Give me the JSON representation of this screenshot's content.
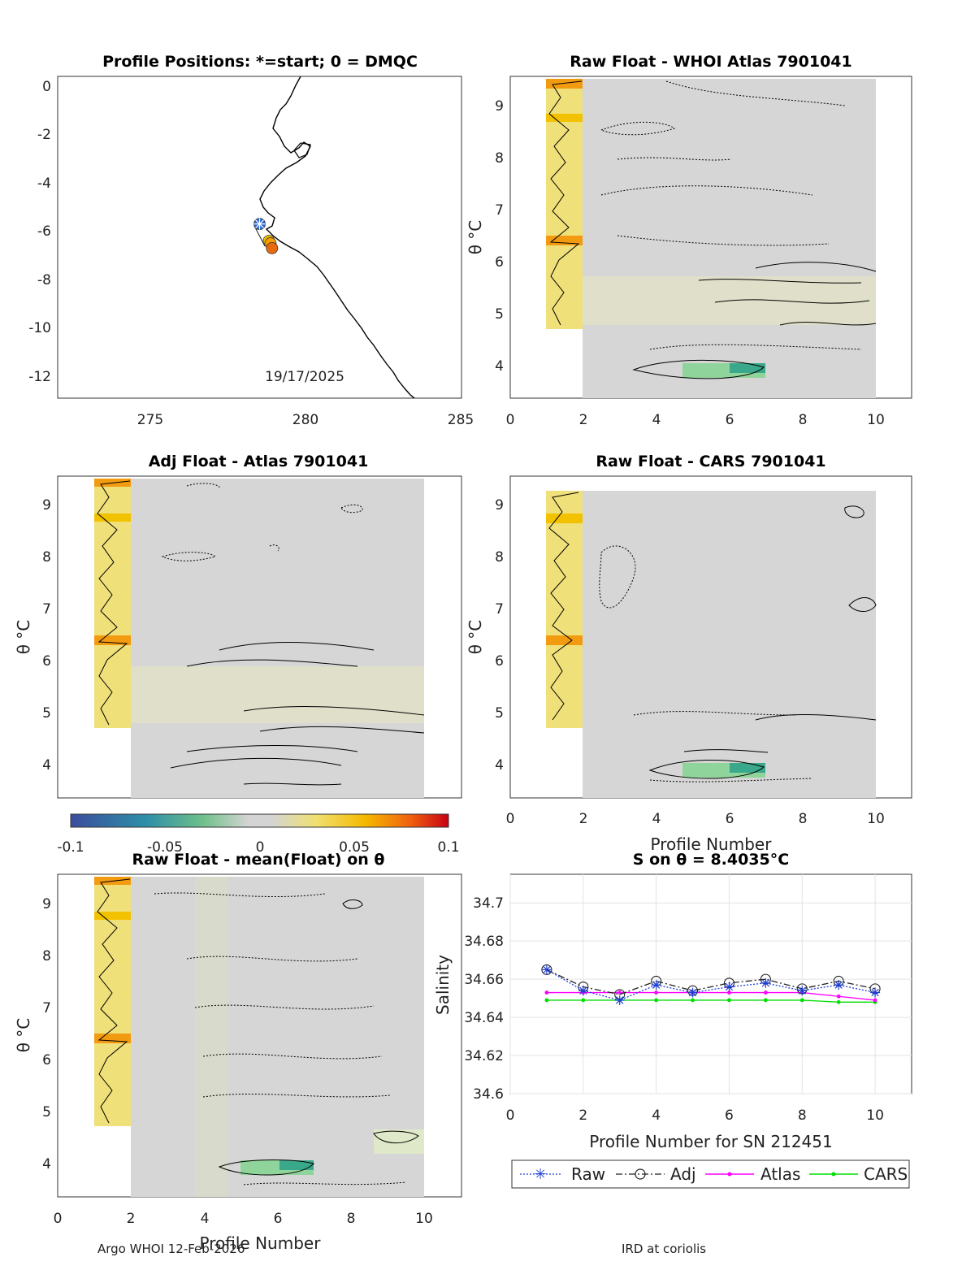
{
  "panels": {
    "map": {
      "title": "Profile Positions: *=start; 0 = DMQC",
      "date_label": "19/17/2025",
      "xticks": [
        "275",
        "280",
        "285"
      ],
      "yticks": [
        "0",
        "-2",
        "-4",
        "-6",
        "-8",
        "-10",
        "-12"
      ]
    },
    "whoi": {
      "title": "Raw Float - WHOI Atlas  7901041",
      "ylabel": "θ °C",
      "xticks": [
        "0",
        "2",
        "4",
        "6",
        "8",
        "10"
      ],
      "yticks": [
        "4",
        "5",
        "6",
        "7",
        "8",
        "9"
      ]
    },
    "adj_atlas": {
      "title": "Adj Float - Atlas  7901041",
      "ylabel": "θ °C",
      "yticks": [
        "4",
        "5",
        "6",
        "7",
        "8",
        "9"
      ]
    },
    "cars": {
      "title": "Raw Float - CARS  7901041",
      "ylabel": "θ °C",
      "xlabel": "Profile Number",
      "xticks": [
        "0",
        "2",
        "4",
        "6",
        "8",
        "10"
      ],
      "yticks": [
        "4",
        "5",
        "6",
        "7",
        "8",
        "9"
      ]
    },
    "mean": {
      "title": "Raw Float - mean(Float) on θ",
      "ylabel": "θ °C",
      "xlabel": "Profile Number",
      "xticks": [
        "0",
        "2",
        "4",
        "6",
        "8",
        "10"
      ],
      "yticks": [
        "4",
        "5",
        "6",
        "7",
        "8",
        "9"
      ]
    },
    "salinity": {
      "title": "S on θ = 8.4035°C",
      "ylabel": "Salinity",
      "xlabel": "Profile Number for SN 212451"
    }
  },
  "colorbar": {
    "ticks": [
      "-0.1",
      "-0.05",
      "0",
      "0.05",
      "0.1"
    ]
  },
  "legend": [
    "Raw",
    "Adj",
    "Atlas",
    "CARS"
  ],
  "footer": {
    "left": "Argo WHOI 12-Feb-2026",
    "right": "IRD at coriolis"
  },
  "colors": {
    "raw": "#1f3fd6",
    "adj": "#222222",
    "atlas": "#ff00ff",
    "cars": "#00dd00",
    "background_field": "#d6d6d6"
  },
  "chart_data": [
    {
      "type": "scatter",
      "title": "Profile Positions: *=start; 0 = DMQC",
      "xlim": [
        272,
        285
      ],
      "ylim": [
        -13,
        0.3
      ],
      "points": [
        {
          "lon": 278.5,
          "lat": -5.8,
          "marker": "start"
        },
        {
          "lon": 278.8,
          "lat": -6.5
        },
        {
          "lon": 278.85,
          "lat": -6.6
        },
        {
          "lon": 278.9,
          "lat": -6.8
        }
      ]
    },
    {
      "type": "heatmap",
      "title": "Raw Float - WHOI Atlas  7901041",
      "xlim": [
        0,
        11
      ],
      "ylim": [
        3.4,
        9.6
      ],
      "colormap_range": [
        -0.1,
        0.1
      ]
    },
    {
      "type": "heatmap",
      "title": "Adj Float - Atlas  7901041",
      "xlim": [
        0,
        11
      ],
      "ylim": [
        3.4,
        9.6
      ]
    },
    {
      "type": "heatmap",
      "title": "Raw Float - CARS  7901041",
      "xlim": [
        0,
        11
      ],
      "ylim": [
        3.4,
        9.6
      ]
    },
    {
      "type": "heatmap",
      "title": "Raw Float - mean(Float) on θ",
      "xlim": [
        0,
        11
      ],
      "ylim": [
        3.4,
        9.6
      ]
    },
    {
      "type": "line",
      "title": "S on θ = 8.4035°C",
      "xlabel": "Profile Number for SN 212451",
      "ylabel": "Salinity",
      "xlim": [
        0,
        11
      ],
      "ylim": [
        34.6,
        34.715
      ],
      "yticks": [
        "34.6",
        "34.62",
        "34.64",
        "34.66",
        "34.68",
        "34.7"
      ],
      "xticks": [
        "0",
        "2",
        "4",
        "6",
        "8",
        "10"
      ],
      "x": [
        1,
        2,
        3,
        4,
        5,
        6,
        7,
        8,
        9,
        10
      ],
      "series": [
        {
          "name": "Raw",
          "values": [
            34.665,
            34.654,
            34.649,
            34.657,
            34.653,
            34.656,
            34.658,
            34.654,
            34.657,
            34.653
          ]
        },
        {
          "name": "Adj",
          "values": [
            34.665,
            34.656,
            34.652,
            34.659,
            34.654,
            34.658,
            34.66,
            34.655,
            34.659,
            34.655
          ]
        },
        {
          "name": "Atlas",
          "values": [
            34.653,
            34.653,
            34.653,
            34.653,
            34.653,
            34.653,
            34.653,
            34.653,
            34.651,
            34.649
          ]
        },
        {
          "name": "CARS",
          "values": [
            34.649,
            34.649,
            34.649,
            34.649,
            34.649,
            34.649,
            34.649,
            34.649,
            34.648,
            34.648
          ]
        }
      ]
    }
  ]
}
